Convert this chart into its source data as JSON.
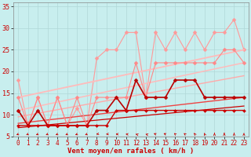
{
  "xlabel": "Vent moyen/en rafales ( km/h )",
  "background_color": "#c8eeee",
  "grid_color": "#b0d8d8",
  "xlim": [
    -0.5,
    23.5
  ],
  "ylim": [
    5,
    36
  ],
  "yticks": [
    5,
    10,
    15,
    20,
    25,
    30,
    35
  ],
  "xticks": [
    0,
    1,
    2,
    3,
    4,
    5,
    6,
    7,
    8,
    9,
    10,
    11,
    12,
    13,
    14,
    15,
    16,
    17,
    18,
    19,
    20,
    21,
    22,
    23
  ],
  "lines": [
    {
      "x": [
        0,
        1,
        2,
        3,
        4,
        5,
        6,
        7,
        8,
        9,
        10,
        11,
        12,
        13,
        14,
        15,
        16,
        17,
        18,
        19,
        20,
        21,
        22,
        23
      ],
      "y": [
        18,
        7.5,
        14,
        7.5,
        14,
        7.5,
        11.5,
        7.5,
        23,
        25,
        25,
        29,
        29,
        14,
        29,
        25,
        29,
        25,
        29,
        25,
        29,
        29,
        32,
        25
      ],
      "color": "#ff9999",
      "lw": 0.8,
      "marker": "D",
      "ms": 2.5
    },
    {
      "x": [
        0,
        23
      ],
      "y": [
        14,
        25
      ],
      "color": "#ffbbbb",
      "lw": 1.3,
      "marker": null,
      "ms": 0
    },
    {
      "x": [
        0,
        23
      ],
      "y": [
        11,
        22
      ],
      "color": "#ffbbbb",
      "lw": 1.1,
      "marker": null,
      "ms": 0
    },
    {
      "x": [
        0,
        23
      ],
      "y": [
        9.5,
        19
      ],
      "color": "#ffaaaa",
      "lw": 1.0,
      "marker": null,
      "ms": 0
    },
    {
      "x": [
        0,
        23
      ],
      "y": [
        8,
        14
      ],
      "color": "#ee4444",
      "lw": 1.0,
      "marker": null,
      "ms": 0
    },
    {
      "x": [
        0,
        23
      ],
      "y": [
        7,
        12
      ],
      "color": "#cc0000",
      "lw": 0.9,
      "marker": null,
      "ms": 0
    },
    {
      "x": [
        0,
        1,
        2,
        3,
        4,
        5,
        6,
        7,
        8,
        9,
        10,
        11,
        12,
        13,
        14,
        15,
        16,
        17,
        18,
        19,
        20,
        21,
        22,
        23
      ],
      "y": [
        14,
        7.5,
        14,
        7.5,
        14,
        7.5,
        14,
        7.5,
        14,
        14,
        14,
        14,
        22,
        14,
        22,
        22,
        22,
        22,
        22,
        22,
        22,
        25,
        25,
        22
      ],
      "color": "#ff8888",
      "lw": 0.8,
      "marker": "D",
      "ms": 2.5
    },
    {
      "x": [
        0,
        1,
        2,
        3,
        4,
        5,
        6,
        7,
        8,
        9,
        10,
        11,
        12,
        13,
        14,
        15,
        16,
        17,
        18,
        19,
        20,
        21,
        22,
        23
      ],
      "y": [
        11,
        7.5,
        11,
        7.5,
        7.5,
        7.5,
        7.5,
        7.5,
        11,
        11,
        14,
        11,
        18,
        14,
        14,
        14,
        18,
        18,
        18,
        14,
        14,
        14,
        14,
        14
      ],
      "color": "#bb0000",
      "lw": 1.2,
      "marker": "D",
      "ms": 2.5
    },
    {
      "x": [
        0,
        1,
        2,
        3,
        4,
        5,
        6,
        7,
        8,
        9,
        10,
        11,
        12,
        13,
        14,
        15,
        16,
        17,
        18,
        19,
        20,
        21,
        22,
        23
      ],
      "y": [
        7.5,
        7.5,
        7.5,
        7.5,
        7.5,
        7.5,
        7.5,
        7.5,
        7.5,
        7.5,
        11,
        11,
        11,
        11,
        11,
        11,
        11,
        11,
        11,
        11,
        11,
        11,
        11,
        11
      ],
      "color": "#cc0000",
      "lw": 1.0,
      "marker": "D",
      "ms": 2.0
    }
  ],
  "wind_arrows_angles": [
    225,
    225,
    225,
    225,
    225,
    225,
    225,
    225,
    250,
    260,
    270,
    280,
    300,
    300,
    315,
    315,
    330,
    330,
    340,
    350,
    0,
    0,
    0,
    0
  ],
  "wind_y": 5.5,
  "wind_color": "#cc0000",
  "spine_color": "#888888"
}
